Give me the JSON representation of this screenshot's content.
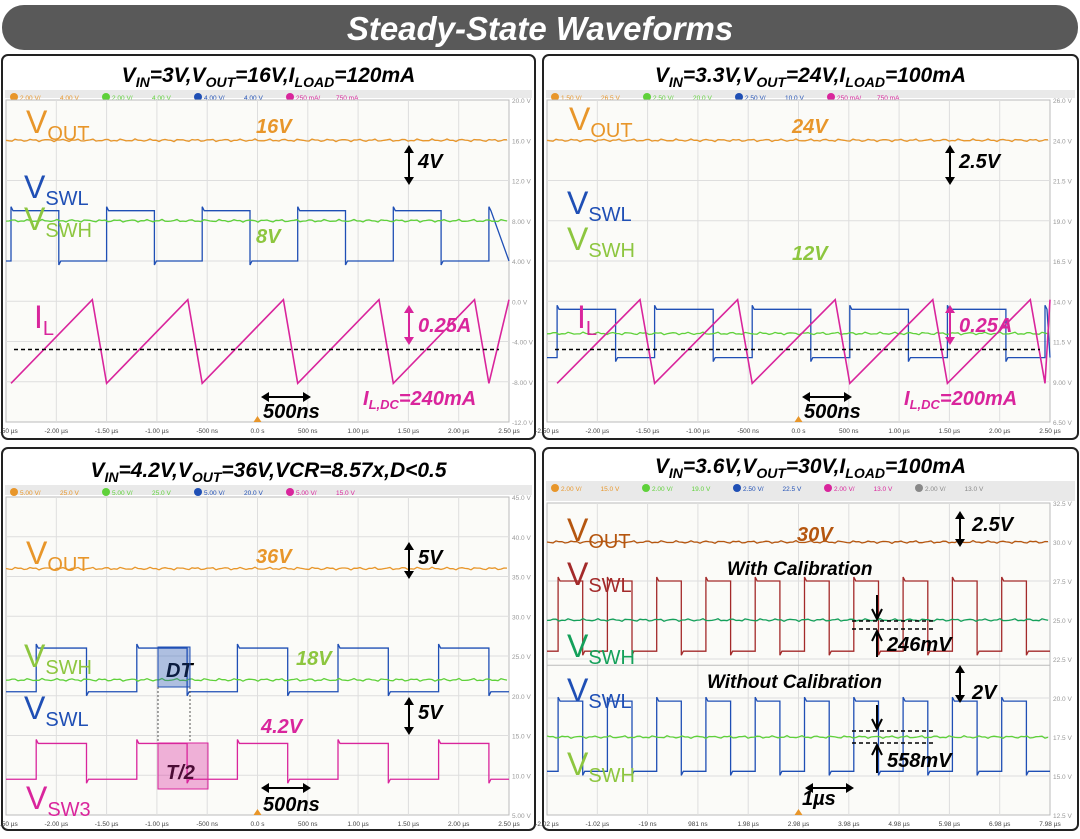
{
  "page_title": "Steady-State Waveforms",
  "colors": {
    "orange": "#E8962A",
    "blue": "#1F4FB5",
    "green": "#5FD13A",
    "magenta": "#D9259C",
    "olive_label": "#8DC63F",
    "dark_orange": "#B5560F",
    "dark_red": "#A32A2A",
    "teal_green": "#14A05A"
  },
  "chart_data": [
    {
      "type": "line",
      "title": "VIN=3V,VOUT=16V,ILOAD=120mA",
      "title_parts": [
        [
          "V",
          "IN",
          "=3V,"
        ],
        [
          "V",
          "OUT",
          "=16V,"
        ],
        [
          "I",
          "LOAD",
          "=120mA"
        ]
      ],
      "toolbar": [
        "2.00 V/",
        "4.00 V",
        "2.00 V/",
        "4.00 V",
        "4.00 V/",
        "4.00 V",
        "250 mA/",
        "750 mA"
      ],
      "xticks": [
        "-2.50 µs",
        "-2.00 µs",
        "-1.50 µs",
        "-1.00 µs",
        "-500 ns",
        "0.0 s",
        "500 ns",
        "1.00 µs",
        "1.50 µs",
        "2.00 µs",
        "2.50 µs"
      ],
      "yticks": [
        "20.0 V",
        "16.0 V",
        "12.0 V",
        "8.00 V",
        "4.00 V",
        "0.0 V",
        "-4.00 V",
        "-8.00 V",
        "-12.0 V"
      ],
      "labels": [
        {
          "id": "vout",
          "base": "V",
          "sub": "OUT",
          "color": "orange"
        },
        {
          "id": "vswl",
          "base": "V",
          "sub": "SWL",
          "color": "blue"
        },
        {
          "id": "vswh",
          "base": "V",
          "sub": "SWH",
          "color": "olive_label"
        },
        {
          "id": "il",
          "base": "I",
          "sub": "L",
          "color": "magenta"
        }
      ],
      "annotations": [
        {
          "id": "val-vout",
          "text": "16V",
          "color": "orange"
        },
        {
          "id": "val-vsw",
          "text": "8V",
          "color": "olive_label"
        },
        {
          "id": "scale-v",
          "text": "4V"
        },
        {
          "id": "scale-i",
          "text": "0.25A",
          "color": "magenta"
        },
        {
          "id": "time",
          "text": "500ns"
        }
      ],
      "idc": {
        "base": "I",
        "sub": "L,DC",
        "rest": "=240mA"
      },
      "series": [
        {
          "kind": "flat",
          "name": "VOUT",
          "color": "orange",
          "level": 16
        },
        {
          "kind": "square",
          "name": "VSWL",
          "color": "blue",
          "high": 9,
          "low": 4,
          "period_us": 0.95,
          "start_us": -2.45,
          "duty": 0.5
        },
        {
          "kind": "flat",
          "name": "VSWH",
          "color": "green",
          "level": 8
        },
        {
          "kind": "saw",
          "name": "IL",
          "color": "magenta",
          "peak_a": 0.49,
          "valley_a": 0.24,
          "period_us": 0.95,
          "start_us": -2.45
        }
      ]
    },
    {
      "type": "line",
      "title": "VIN=3.3V,VOUT=24V,ILOAD=100mA",
      "title_parts": [
        [
          "V",
          "IN",
          "=3.3V,"
        ],
        [
          "V",
          "OUT",
          "=24V,"
        ],
        [
          "I",
          "LOAD",
          "=100mA"
        ]
      ],
      "toolbar": [
        "1.50 V/",
        "26.5 V",
        "2.50 V/",
        "20.0 V",
        "2.50 V/",
        "10.0 V",
        "250 mA/",
        "750 mA"
      ],
      "xticks": [
        "-2.50 µs",
        "-2.00 µs",
        "-1.50 µs",
        "-1.00 µs",
        "-500 ns",
        "0.0 s",
        "500 ns",
        "1.00 µs",
        "1.50 µs",
        "2.00 µs",
        "2.50 µs"
      ],
      "yticks": [
        "26.0 V",
        "24.0 V",
        "21.5 V",
        "19.0 V",
        "16.5 V",
        "14.0 V",
        "11.5 V",
        "9.00 V",
        "6.50 V"
      ],
      "labels": [
        {
          "id": "vout",
          "base": "V",
          "sub": "OUT",
          "color": "orange"
        },
        {
          "id": "vswl",
          "base": "V",
          "sub": "SWL",
          "color": "blue"
        },
        {
          "id": "vswh",
          "base": "V",
          "sub": "SWH",
          "color": "olive_label"
        },
        {
          "id": "il",
          "base": "I",
          "sub": "L",
          "color": "magenta"
        }
      ],
      "annotations": [
        {
          "id": "val-vout",
          "text": "24V",
          "color": "orange"
        },
        {
          "id": "val-vsw",
          "text": "12V",
          "color": "olive_label"
        },
        {
          "id": "scale-v",
          "text": "2.5V"
        },
        {
          "id": "scale-i",
          "text": "0.25A",
          "color": "magenta"
        },
        {
          "id": "time",
          "text": "500ns"
        }
      ],
      "idc": {
        "base": "I",
        "sub": "L,DC",
        "rest": "=200mA"
      },
      "series": [
        {
          "kind": "flat",
          "name": "VOUT",
          "color": "orange",
          "level": 24
        },
        {
          "kind": "square",
          "name": "VSWL",
          "color": "blue",
          "high": 13.5,
          "low": 10.5,
          "period_us": 0.97,
          "start_us": -2.4,
          "duty": 0.6
        },
        {
          "kind": "flat",
          "name": "VSWH",
          "color": "green",
          "level": 12
        },
        {
          "kind": "saw",
          "name": "IL",
          "color": "magenta",
          "peak_a": 0.45,
          "valley_a": 0.2,
          "period_us": 0.97,
          "start_us": -2.4
        }
      ]
    },
    {
      "type": "line",
      "title": "VIN=4.2V,VOUT=36V,VCR=8.57x,D<0.5",
      "title_parts": [
        [
          "V",
          "IN",
          "=4.2V,"
        ],
        [
          "V",
          "OUT",
          "=36V,"
        ],
        [
          "VCR=8.57x,D<0.5",
          "",
          ""
        ]
      ],
      "toolbar": [
        "5.00 V/",
        "25.0 V",
        "5.00 V/",
        "25.0 V",
        "5.00 V/",
        "20.0 V",
        "5.00 V/",
        "15.0 V"
      ],
      "xticks": [
        "-2.50 µs",
        "-2.00 µs",
        "-1.50 µs",
        "-1.00 µs",
        "-500 ns",
        "0.0 s",
        "500 ns",
        "1.00 µs",
        "1.50 µs",
        "2.00 µs",
        "2.50 µs"
      ],
      "yticks": [
        "45.0 V",
        "40.0 V",
        "35.0 V",
        "30.0 V",
        "25.0 V",
        "20.0 V",
        "15.0 V",
        "10.0 V",
        "5.00 V"
      ],
      "labels": [
        {
          "id": "vout",
          "base": "V",
          "sub": "OUT",
          "color": "orange"
        },
        {
          "id": "vswh",
          "base": "V",
          "sub": "SWH",
          "color": "olive_label"
        },
        {
          "id": "vswl",
          "base": "V",
          "sub": "SWL",
          "color": "blue"
        },
        {
          "id": "vsw3",
          "base": "V",
          "sub": "SW3",
          "color": "magenta"
        }
      ],
      "annotations": [
        {
          "id": "val-vout",
          "text": "36V",
          "color": "orange"
        },
        {
          "id": "val-vsw",
          "text": "18V",
          "color": "olive_label"
        },
        {
          "id": "val-sw3",
          "text": "4.2V",
          "color": "magenta"
        },
        {
          "id": "scale-v",
          "text": "5V"
        },
        {
          "id": "scale-v2",
          "text": "5V"
        },
        {
          "id": "dt",
          "text": "DT"
        },
        {
          "id": "t2",
          "text": "T/2"
        },
        {
          "id": "time",
          "text": "500ns"
        }
      ],
      "series": [
        {
          "kind": "flat",
          "name": "VOUT",
          "color": "orange",
          "level": 36
        },
        {
          "kind": "square",
          "name": "VSWL",
          "color": "blue",
          "high": 26,
          "low": 20.5,
          "period_us": 1.0,
          "start_us": -2.2,
          "duty": 0.5
        },
        {
          "kind": "flat",
          "name": "VSWH",
          "color": "green",
          "level": 22
        },
        {
          "kind": "square",
          "name": "VSW3",
          "color": "magenta",
          "high": 14,
          "low": 9.5,
          "period_us": 1.0,
          "start_us": -2.2,
          "duty": 0.5
        }
      ]
    },
    {
      "type": "line",
      "title": "VIN=3.6V,VOUT=30V,ILOAD=100mA",
      "title_parts": [
        [
          "V",
          "IN",
          "=3.6V,"
        ],
        [
          "V",
          "OUT",
          "=30V,"
        ],
        [
          "I",
          "LOAD",
          "=100mA"
        ]
      ],
      "toolbar": [
        "2.00 V/",
        "15.0 V",
        "2.00 V/",
        "19.0 V",
        "2.50 V/",
        "22.5 V",
        "2.00 V/",
        "13.0 V",
        "2.00 V/",
        "13.0 V"
      ],
      "xticks": [
        "-2.02 µs",
        "-1.02 µs",
        "-19 ns",
        "981 ns",
        "1.98 µs",
        "2.98 µs",
        "3.98 µs",
        "4.98 µs",
        "5.98 µs",
        "6.98 µs",
        "7.98 µs"
      ],
      "yticks": [
        "32.5 V",
        "30.0 V",
        "27.5 V",
        "25.0 V",
        "22.5 V",
        "20.0 V",
        "17.5 V",
        "15.0 V",
        "12.5 V"
      ],
      "labels": [
        {
          "id": "vout",
          "base": "V",
          "sub": "OUT",
          "color": "dark_orange"
        },
        {
          "id": "vswl1",
          "base": "V",
          "sub": "SWL",
          "color": "dark_red"
        },
        {
          "id": "vswh1",
          "base": "V",
          "sub": "SWH",
          "color": "teal_green"
        },
        {
          "id": "vswl2",
          "base": "V",
          "sub": "SWL",
          "color": "blue"
        },
        {
          "id": "vswh2",
          "base": "V",
          "sub": "SWH",
          "color": "olive_label"
        }
      ],
      "annotations": [
        {
          "id": "val-vout",
          "text": "30V",
          "color": "dark_orange"
        },
        {
          "id": "with-cal",
          "text": "With Calibration"
        },
        {
          "id": "without-cal",
          "text": "Without Calibration"
        },
        {
          "id": "scale-v",
          "text": "2.5V"
        },
        {
          "id": "scale-v2",
          "text": "2V"
        },
        {
          "id": "ripple1",
          "text": "246mV"
        },
        {
          "id": "ripple2",
          "text": "558mV"
        },
        {
          "id": "time",
          "text": "1µs"
        }
      ],
      "series": [
        {
          "kind": "flat",
          "name": "VOUT",
          "color": "dark_orange",
          "level": 30
        },
        {
          "kind": "square",
          "name": "VSWL (with calibration)",
          "color": "dark_red",
          "high": 27.5,
          "low": 23,
          "period_us": 0.98,
          "start_us": -1.8,
          "duty": 0.5
        },
        {
          "kind": "flat",
          "name": "VSWH (with calibration)",
          "color": "teal_green",
          "level": 25.0
        },
        {
          "kind": "square",
          "name": "VSWL (without calibration)",
          "color": "blue",
          "high": 19.8,
          "low": 15.3,
          "period_us": 0.98,
          "start_us": -1.8,
          "duty": 0.5
        },
        {
          "kind": "flat",
          "name": "VSWH (without calibration)",
          "color": "green",
          "level": 17.5
        }
      ]
    }
  ]
}
